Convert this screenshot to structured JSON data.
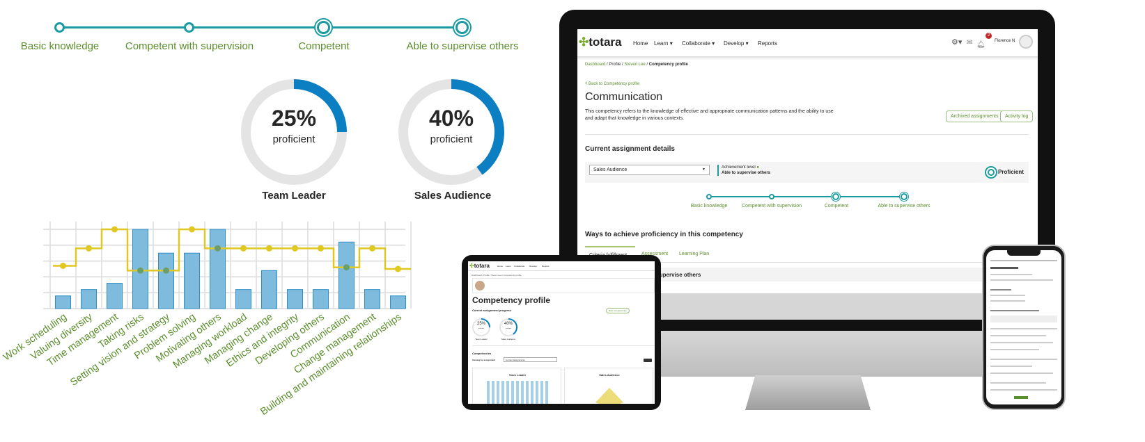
{
  "levels": [
    "Basic knowledge",
    "Competent with supervision",
    "Competent",
    "Able to supervise others"
  ],
  "donuts": [
    {
      "value": 25,
      "pct_label": "25%",
      "sub": "proficient",
      "name": "Team Leader"
    },
    {
      "value": 40,
      "pct_label": "40%",
      "sub": "proficient",
      "name": "Sales Audience"
    }
  ],
  "colors": {
    "teal": "#1a9ba1",
    "green": "#5b8e2c",
    "blue": "#0b7fc1",
    "bar": "#7fbbdc",
    "line": "#e0c722"
  },
  "chart_data": {
    "type": "bar",
    "categories": [
      "Work scheduling",
      "Valuing diversity",
      "Time management",
      "Taking risks",
      "Setting vision and strategy",
      "Problem solving",
      "Motivating others",
      "Managing workload",
      "Managing change",
      "Ethics and integrity",
      "Developing others",
      "Communication",
      "Change management",
      "Building and maintaining relationships"
    ],
    "series": [
      {
        "type": "bar",
        "values": [
          0.8,
          1.2,
          1.6,
          5,
          3.5,
          3.5,
          5,
          1.2,
          2.4,
          1.2,
          1.2,
          4.2,
          1.2,
          0.8
        ]
      },
      {
        "type": "step-line",
        "values": [
          2.7,
          3.8,
          5,
          2.4,
          2.4,
          5,
          3.8,
          3.8,
          3.8,
          3.8,
          3.8,
          2.6,
          3.8,
          2.5
        ]
      }
    ],
    "ylim": [
      0,
      5.5
    ],
    "grid": true
  },
  "desktop": {
    "logo": "totara",
    "nav": [
      "Home",
      "Learn",
      "Collaborate",
      "Develop",
      "Reports"
    ],
    "nav_dropdown": [
      false,
      true,
      true,
      true,
      false
    ],
    "user": "Florence N",
    "notif_count": "2",
    "breadcrumb": [
      "Dashboard",
      "Profile",
      "Steven Lee",
      "Competency profile"
    ],
    "back": "Back to Competency profile",
    "title": "Communication",
    "description": "This competency refers to the knowledge of effective and appropriate communication patterns and the ability to use and adapt that knowledge in various contexts.",
    "btn_archived": "Archived assignments",
    "btn_activity": "Activity log",
    "section1": "Current assignment details",
    "select_value": "Sales Audience",
    "achievement_label": "Achievement level",
    "achievement_value": "Able to supervise others",
    "status": "Proficient",
    "section2": "Ways to achieve proficiency in this competency",
    "tabs": [
      "Criteria fulfillment",
      "Assessment",
      "Learning Plan"
    ],
    "row_text": "Able to supervise others"
  },
  "tablet": {
    "logo": "totara",
    "nav": [
      "Home",
      "Learn",
      "Collaborate",
      "Develop",
      "Reports"
    ],
    "breadcrumb": "Dashboard / Profile / Steven Lee / Competency profile",
    "title": "Competency profile",
    "progress_heading": "Current assignment progress",
    "btn_rate": "Rate competencies",
    "donuts": [
      {
        "pct": "25%",
        "sub": "proficient",
        "name": "Team Leader"
      },
      {
        "pct": "40%",
        "sub": "proficient",
        "name": "Sales Audience"
      }
    ],
    "competencies": "Competencies",
    "viewing": "Viewing by assignment",
    "select": "Current assignments",
    "card1": "Team Leader",
    "card2": "Sales Audience"
  }
}
